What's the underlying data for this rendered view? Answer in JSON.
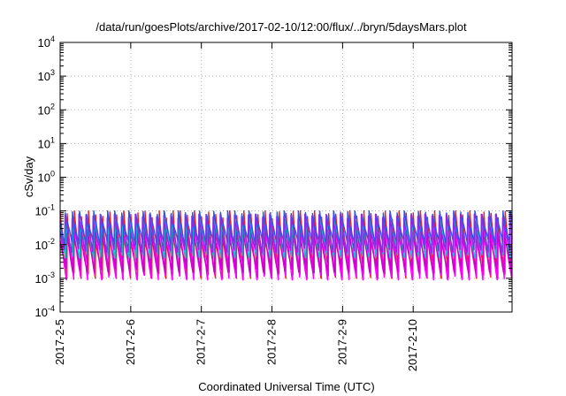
{
  "chart_data": {
    "type": "line",
    "title": "/data/run/goesPlots/archive/2017-02-10/12:00/flux/../bryn/5daysMars.plot",
    "xlabel": "Coordinated Universal Time (UTC)",
    "ylabel": "cSv/day",
    "x_tick_labels": [
      "2017-2-5",
      "2017-2-6",
      "2017-2-7",
      "2017-2-8",
      "2017-2-9",
      "2017-2-10"
    ],
    "x_range_days": [
      0,
      6.4
    ],
    "y_scale": "log",
    "y_tick_exponents": [
      -4,
      -3,
      -2,
      -1,
      0,
      1,
      2,
      3,
      4
    ],
    "y_tick_base": "10",
    "ylim": [
      0.0001,
      10000
    ],
    "grid": true,
    "cycles_per_day": 10,
    "series": [
      {
        "color": "#ff1a1a",
        "peak": 0.1,
        "trough": 0.001
      },
      {
        "color": "#ff00ff",
        "peak": 0.05,
        "trough": 0.0009
      },
      {
        "color": "#cc00cc",
        "peak": 0.03,
        "trough": 0.0015
      },
      {
        "color": "#00cccc",
        "peak": 0.07,
        "trough": 0.004
      },
      {
        "color": "#2255ff",
        "peak": 0.1,
        "trough": 0.01
      },
      {
        "color": "#8a2be2",
        "peak": 0.08,
        "trough": 0.006
      }
    ]
  }
}
